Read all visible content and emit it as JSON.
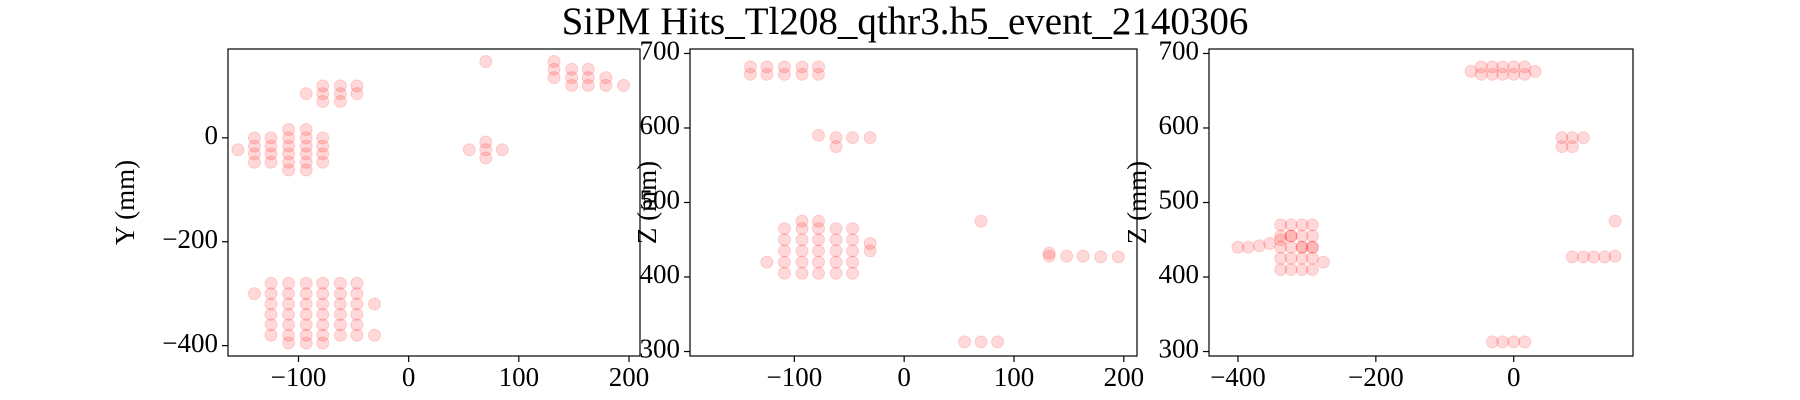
{
  "title": "SiPM Hits_Tl208_qthr3.h5_event_2140306",
  "chart_data": [
    {
      "type": "scatter",
      "y_label": "Y (mm)",
      "xlim": [
        -164,
        210
      ],
      "xticks": [
        {
          "value": -100,
          "label": "−100"
        },
        0,
        100,
        200
      ],
      "ylim": [
        -420,
        171
      ],
      "yticks": [
        {
          "value": -400,
          "label": "−400"
        },
        {
          "value": -200,
          "label": "−200"
        },
        0
      ],
      "series": [
        {
          "color": "#ff0000",
          "alpha": 0.15,
          "x": [
            -140,
            -140,
            -140,
            -140,
            -125,
            -125,
            -125,
            -125,
            -109,
            -109,
            -109,
            -109,
            -93,
            -93,
            -93,
            -93,
            -78,
            -78,
            -78,
            -78,
            -109,
            -93,
            -109,
            -93,
            -155,
            -125,
            -125,
            -125,
            -125,
            -125,
            -125,
            -109,
            -109,
            -109,
            -109,
            -109,
            -109,
            -93,
            -93,
            -93,
            -93,
            -93,
            -93,
            -78,
            -78,
            -78,
            -78,
            -78,
            -78,
            -62,
            -62,
            -62,
            -62,
            -62,
            -62,
            -47,
            -47,
            -47,
            -47,
            -47,
            -47,
            -31,
            -31,
            -140,
            -109,
            -93,
            -78,
            -93,
            -78,
            -78,
            -78,
            -62,
            -62,
            -62,
            -47,
            -47,
            55,
            70,
            70,
            70,
            85,
            70,
            132,
            132,
            132,
            148,
            148,
            148,
            163,
            163,
            163,
            179,
            179,
            195
          ],
          "values": [
            -47,
            -31,
            -16,
            0,
            -47,
            -31,
            -16,
            0,
            -47,
            -31,
            -16,
            0,
            -47,
            -31,
            -16,
            0,
            -47,
            -31,
            -16,
            0,
            16,
            16,
            -62,
            -62,
            -23,
            -280,
            -300,
            -320,
            -340,
            -360,
            -380,
            -280,
            -300,
            -320,
            -340,
            -360,
            -380,
            -280,
            -300,
            -320,
            -340,
            -360,
            -380,
            -280,
            -300,
            -320,
            -340,
            -360,
            -380,
            -280,
            -300,
            -320,
            -340,
            -360,
            -380,
            -280,
            -300,
            -320,
            -340,
            -360,
            -380,
            -320,
            -380,
            -300,
            -395,
            -395,
            -395,
            85,
            100,
            85,
            70,
            100,
            85,
            70,
            100,
            85,
            -23,
            -23,
            -39,
            -8,
            -23,
            147,
            147,
            132,
            116,
            132,
            116,
            101,
            132,
            116,
            101,
            116,
            101,
            101
          ]
        }
      ]
    },
    {
      "type": "scatter",
      "y_label": "Z (mm)",
      "xlim": [
        -195,
        212
      ],
      "xticks": [
        {
          "value": -100,
          "label": "−100"
        },
        0,
        100,
        200
      ],
      "ylim": [
        294,
        706
      ],
      "yticks": [
        300,
        400,
        500,
        600,
        700
      ],
      "series": [
        {
          "color": "#ff0000",
          "alpha": 0.15,
          "x": [
            -140,
            -140,
            -125,
            -125,
            -109,
            -109,
            -93,
            -93,
            -78,
            -78,
            -78,
            -62,
            -62,
            -47,
            -31,
            -109,
            -109,
            -109,
            -109,
            -109,
            -93,
            -93,
            -93,
            -93,
            -93,
            -78,
            -78,
            -78,
            -78,
            -78,
            -62,
            -62,
            -62,
            -62,
            -62,
            -47,
            -47,
            -47,
            -47,
            -47,
            -125,
            -31,
            -31,
            -93,
            -78,
            132,
            132,
            148,
            163,
            179,
            195,
            55,
            70,
            85,
            70
          ],
          "values": [
            672,
            682,
            672,
            682,
            672,
            682,
            672,
            682,
            672,
            682,
            590,
            575,
            587,
            587,
            587,
            405,
            420,
            435,
            450,
            465,
            405,
            420,
            435,
            450,
            465,
            405,
            420,
            435,
            450,
            465,
            405,
            420,
            435,
            450,
            465,
            405,
            420,
            435,
            450,
            465,
            420,
            435,
            445,
            475,
            475,
            428,
            432,
            428,
            428,
            427,
            427,
            313,
            313,
            313,
            475
          ]
        }
      ]
    },
    {
      "type": "scatter",
      "y_label": "Z (mm)",
      "xlim": [
        -442,
        173
      ],
      "xticks": [
        {
          "value": -400,
          "label": "−400"
        },
        {
          "value": -200,
          "label": "−200"
        },
        0
      ],
      "ylim": [
        294,
        706
      ],
      "yticks": [
        300,
        400,
        500,
        600,
        700
      ],
      "series": [
        {
          "color": "#ff0000",
          "alpha": 0.15,
          "x": [
            -47,
            -47,
            -31,
            -31,
            -16,
            -16,
            0,
            0,
            16,
            16,
            -62,
            31,
            70,
            85,
            101,
            70,
            85,
            -400,
            -385,
            -369,
            -354,
            -338,
            -323,
            -307,
            -292,
            -276,
            -338,
            -338,
            -338,
            -338,
            -338,
            -323,
            -323,
            -323,
            -323,
            -323,
            -307,
            -307,
            -307,
            -307,
            -307,
            -292,
            -292,
            -292,
            -292,
            -292,
            85,
            101,
            116,
            132,
            147,
            147,
            -31,
            -16,
            0,
            16
          ],
          "values": [
            672,
            682,
            672,
            682,
            672,
            682,
            672,
            682,
            672,
            682,
            676,
            676,
            587,
            587,
            587,
            575,
            575,
            440,
            440,
            442,
            445,
            450,
            455,
            440,
            440,
            420,
            410,
            425,
            440,
            455,
            470,
            410,
            425,
            440,
            455,
            470,
            410,
            425,
            440,
            455,
            470,
            410,
            425,
            440,
            455,
            470,
            427,
            427,
            427,
            427,
            428,
            475,
            313,
            313,
            313,
            313
          ]
        }
      ]
    }
  ]
}
